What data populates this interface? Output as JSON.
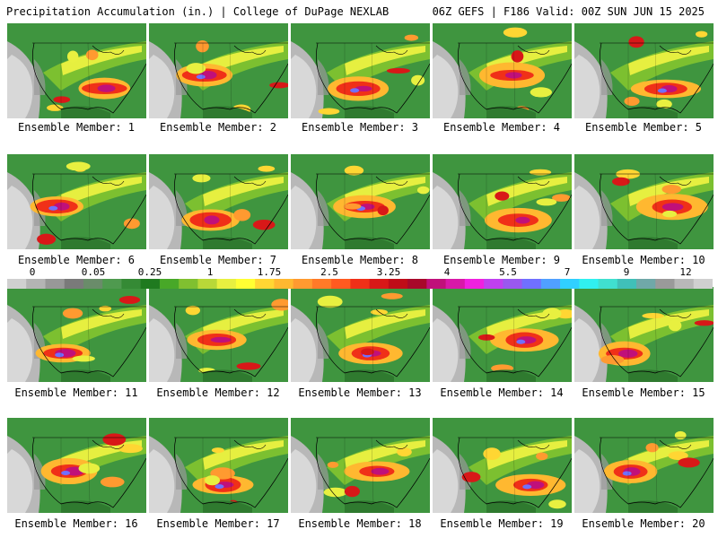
{
  "header": {
    "title": "Precipitation Accumulation (in.) | College of DuPage NEXLAB",
    "run_info": "06Z GEFS | F186 Valid: 00Z SUN JUN 15 2025"
  },
  "members": [
    {
      "label": "Ensemble Member: 1"
    },
    {
      "label": "Ensemble Member: 2"
    },
    {
      "label": "Ensemble Member: 3"
    },
    {
      "label": "Ensemble Member: 4"
    },
    {
      "label": "Ensemble Member: 5"
    },
    {
      "label": "Ensemble Member: 6"
    },
    {
      "label": "Ensemble Member: 7"
    },
    {
      "label": "Ensemble Member: 8"
    },
    {
      "label": "Ensemble Member: 9"
    },
    {
      "label": "Ensemble Member: 10"
    },
    {
      "label": "Ensemble Member: 11"
    },
    {
      "label": "Ensemble Member: 12"
    },
    {
      "label": "Ensemble Member: 13"
    },
    {
      "label": "Ensemble Member: 14"
    },
    {
      "label": "Ensemble Member: 15"
    },
    {
      "label": "Ensemble Member: 16"
    },
    {
      "label": "Ensemble Member: 17"
    },
    {
      "label": "Ensemble Member: 18"
    },
    {
      "label": "Ensemble Member: 19"
    },
    {
      "label": "Ensemble Member: 20"
    }
  ],
  "colorbar": {
    "labels": [
      "0",
      "0.05",
      "0.25",
      "1",
      "1.75",
      "2.5",
      "3.25",
      "4",
      "5.5",
      "7",
      "9",
      "12"
    ],
    "colors": [
      "#d0d0d0",
      "#b4b4b4",
      "#989898",
      "#7a7a7a",
      "#6a8c6a",
      "#4f9a4f",
      "#358a35",
      "#1f7a1f",
      "#48a828",
      "#80c030",
      "#b8d838",
      "#e8f040",
      "#ffff33",
      "#ffd633",
      "#ffb830",
      "#ff9a30",
      "#ff7a28",
      "#ff5a20",
      "#f03018",
      "#d81818",
      "#c00c18",
      "#a8082a",
      "#c0107a",
      "#d818a8",
      "#f020e0",
      "#c040f0",
      "#9a58f0",
      "#7070ff",
      "#50a0ff",
      "#30d0ff",
      "#30f0f0",
      "#40e0d0",
      "#40c0b8",
      "#70a8a8",
      "#9a9a9a",
      "#b8b8b8",
      "#d0d0d0"
    ]
  }
}
